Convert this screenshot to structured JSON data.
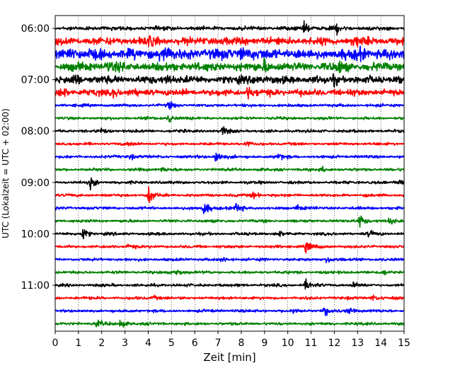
{
  "chart_data": {
    "type": "line",
    "title": "",
    "xlabel": "Zeit  [min]",
    "ylabel": "UTC (Lokalzeit = UTC + 02:00)",
    "xlim": [
      0,
      15
    ],
    "x_ticks": [
      0,
      1,
      2,
      3,
      4,
      5,
      6,
      7,
      8,
      9,
      10,
      11,
      12,
      13,
      14,
      15
    ],
    "x_tick_labels": [
      "0",
      "1",
      "2",
      "3",
      "4",
      "5",
      "6",
      "7",
      "8",
      "9",
      "10",
      "11",
      "12",
      "13",
      "14",
      "15"
    ],
    "y_ticks": [
      "06:00",
      "07:00",
      "08:00",
      "09:00",
      "10:00",
      "11:00"
    ],
    "y_tick_rows": [
      0,
      4,
      8,
      12,
      16,
      20
    ],
    "grid": "vertical dotted at each minute",
    "line_duration_min": 15,
    "color_cycle": [
      "#000000",
      "#ff0000",
      "#0000ff",
      "#008000"
    ],
    "traces": [
      {
        "start_utc": "06:00",
        "color": "#000000",
        "amp": 4,
        "events": [
          [
            10.7,
            10
          ],
          [
            12.1,
            8
          ]
        ]
      },
      {
        "start_utc": "06:15",
        "color": "#ff0000",
        "amp": 8,
        "events": [
          [
            4,
            7
          ],
          [
            12.8,
            10
          ]
        ]
      },
      {
        "start_utc": "06:30",
        "color": "#0000ff",
        "amp": 11,
        "events": [
          [
            0.5,
            11
          ],
          [
            4.5,
            11
          ],
          [
            8,
            11
          ],
          [
            13,
            10
          ]
        ]
      },
      {
        "start_utc": "06:45",
        "color": "#008000",
        "amp": 9,
        "events": [
          [
            2.2,
            11
          ],
          [
            9,
            11
          ],
          [
            12.2,
            9
          ]
        ]
      },
      {
        "start_utc": "07:00",
        "color": "#000000",
        "amp": 8,
        "events": [
          [
            0.8,
            10
          ],
          [
            4.8,
            9
          ],
          [
            8.5,
            11
          ],
          [
            12,
            8
          ]
        ]
      },
      {
        "start_utc": "07:15",
        "color": "#ff0000",
        "amp": 7,
        "events": [
          [
            0.3,
            9
          ],
          [
            2.5,
            8
          ],
          [
            8.3,
            9
          ]
        ]
      },
      {
        "start_utc": "07:30",
        "color": "#0000ff",
        "amp": 3,
        "events": [
          [
            4.9,
            7
          ]
        ]
      },
      {
        "start_utc": "07:45",
        "color": "#008000",
        "amp": 3,
        "events": [
          [
            4.9,
            9
          ]
        ]
      },
      {
        "start_utc": "08:00",
        "color": "#000000",
        "amp": 3,
        "events": [
          [
            7.2,
            11
          ],
          [
            1.9,
            5
          ]
        ]
      },
      {
        "start_utc": "08:15",
        "color": "#ff0000",
        "amp": 3,
        "events": [
          [
            3.2,
            4
          ],
          [
            8.2,
            4
          ]
        ]
      },
      {
        "start_utc": "08:30",
        "color": "#0000ff",
        "amp": 3,
        "events": [
          [
            6.9,
            16
          ],
          [
            3.2,
            6
          ],
          [
            9.6,
            6
          ]
        ]
      },
      {
        "start_utc": "08:45",
        "color": "#008000",
        "amp": 3,
        "events": [
          [
            4.6,
            5
          ],
          [
            11.5,
            5
          ]
        ]
      },
      {
        "start_utc": "09:00",
        "color": "#000000",
        "amp": 3,
        "events": [
          [
            1.5,
            12
          ],
          [
            14.8,
            8
          ]
        ]
      },
      {
        "start_utc": "09:15",
        "color": "#ff0000",
        "amp": 3,
        "events": [
          [
            4.0,
            17
          ],
          [
            8.5,
            6
          ]
        ]
      },
      {
        "start_utc": "09:30",
        "color": "#0000ff",
        "amp": 3,
        "events": [
          [
            6.4,
            16
          ],
          [
            7.8,
            12
          ],
          [
            10.4,
            5
          ]
        ]
      },
      {
        "start_utc": "09:45",
        "color": "#008000",
        "amp": 3,
        "events": [
          [
            13.1,
            14
          ],
          [
            14.4,
            6
          ]
        ]
      },
      {
        "start_utc": "10:00",
        "color": "#000000",
        "amp": 3,
        "events": [
          [
            1.2,
            11
          ],
          [
            9.6,
            6
          ],
          [
            13.5,
            5
          ]
        ]
      },
      {
        "start_utc": "10:15",
        "color": "#ff0000",
        "amp": 3,
        "events": [
          [
            10.8,
            12
          ],
          [
            3.1,
            5
          ]
        ]
      },
      {
        "start_utc": "10:30",
        "color": "#0000ff",
        "amp": 3,
        "events": [
          [
            11.7,
            7
          ],
          [
            7.2,
            4
          ]
        ]
      },
      {
        "start_utc": "10:45",
        "color": "#008000",
        "amp": 3,
        "events": [
          [
            5.2,
            8
          ],
          [
            14.1,
            4
          ]
        ]
      },
      {
        "start_utc": "11:00",
        "color": "#000000",
        "amp": 3,
        "events": [
          [
            10.8,
            11
          ],
          [
            12.8,
            5
          ]
        ]
      },
      {
        "start_utc": "11:15",
        "color": "#ff0000",
        "amp": 3,
        "events": [
          [
            4.2,
            5
          ],
          [
            13.6,
            6
          ]
        ]
      },
      {
        "start_utc": "11:30",
        "color": "#0000ff",
        "amp": 3,
        "events": [
          [
            11.6,
            9
          ],
          [
            12.6,
            6
          ],
          [
            10.2,
            4
          ]
        ]
      },
      {
        "start_utc": "11:45",
        "color": "#008000",
        "amp": 3,
        "events": [
          [
            2.8,
            9
          ],
          [
            1.8,
            6
          ]
        ]
      }
    ]
  }
}
